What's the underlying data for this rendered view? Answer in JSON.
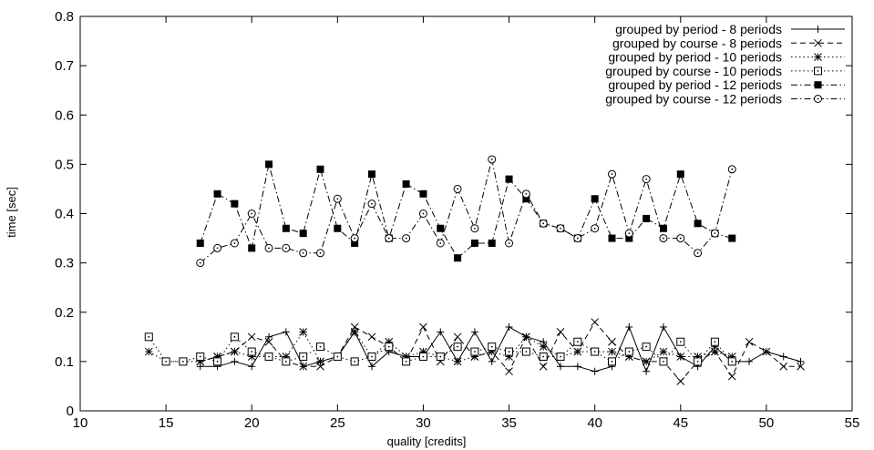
{
  "chart_data": {
    "type": "line",
    "xlabel": "quality [credits]",
    "ylabel": "time [sec]",
    "xlim": [
      10,
      55
    ],
    "ylim": [
      0,
      0.8
    ],
    "xticks": [
      "10",
      "15",
      "20",
      "25",
      "30",
      "35",
      "40",
      "45",
      "50",
      "55"
    ],
    "yticks": [
      "0",
      "0.1",
      "0.2",
      "0.3",
      "0.4",
      "0.5",
      "0.6",
      "0.7",
      "0.8"
    ],
    "grid": false,
    "legend_position": "top-right",
    "series": [
      {
        "name": "grouped by period - 8 periods",
        "marker": "plus",
        "dash": "solid",
        "x": [
          17,
          18,
          19,
          20,
          21,
          22,
          23,
          24,
          25,
          26,
          27,
          28,
          29,
          30,
          31,
          32,
          33,
          34,
          35,
          36,
          37,
          38,
          39,
          40,
          41,
          42,
          43,
          44,
          45,
          46,
          47,
          48,
          49,
          50,
          51,
          52
        ],
        "y": [
          0.09,
          0.09,
          0.1,
          0.09,
          0.15,
          0.16,
          0.09,
          0.1,
          0.11,
          0.16,
          0.09,
          0.12,
          0.11,
          0.11,
          0.16,
          0.1,
          0.16,
          0.1,
          0.17,
          0.15,
          0.14,
          0.09,
          0.09,
          0.08,
          0.09,
          0.17,
          0.08,
          0.17,
          0.11,
          0.09,
          0.13,
          0.1,
          0.1,
          0.12,
          0.11,
          0.1
        ]
      },
      {
        "name": "grouped by course - 8 periods",
        "marker": "x",
        "dash": "dashed",
        "x": [
          17,
          18,
          19,
          20,
          21,
          22,
          23,
          24,
          25,
          26,
          27,
          28,
          29,
          30,
          31,
          32,
          33,
          34,
          35,
          36,
          37,
          38,
          39,
          40,
          41,
          42,
          43,
          44,
          45,
          46,
          47,
          48,
          49,
          50,
          51,
          52
        ],
        "y": [
          0.1,
          0.11,
          0.12,
          0.15,
          0.14,
          0.1,
          0.09,
          0.09,
          0.11,
          0.17,
          0.15,
          0.13,
          0.1,
          0.17,
          0.1,
          0.15,
          0.11,
          0.12,
          0.08,
          0.15,
          0.09,
          0.16,
          0.12,
          0.18,
          0.14,
          0.11,
          0.1,
          0.1,
          0.06,
          0.1,
          0.12,
          0.07,
          0.14,
          0.12,
          0.09,
          0.09
        ]
      },
      {
        "name": "grouped by period - 10 periods",
        "marker": "asterisk",
        "dash": "dotted",
        "x": [
          14,
          15,
          16,
          17,
          18,
          19,
          20,
          21,
          22,
          23,
          24,
          25,
          26,
          27,
          28,
          29,
          30,
          31,
          32,
          33,
          34,
          35,
          36,
          37,
          38,
          39,
          40,
          41,
          42,
          43,
          44,
          45,
          46,
          47,
          48
        ],
        "y": [
          0.12,
          0.1,
          0.1,
          0.1,
          0.11,
          0.12,
          0.11,
          0.11,
          0.11,
          0.16,
          0.1,
          0.11,
          0.16,
          0.11,
          0.14,
          0.11,
          0.12,
          0.11,
          0.1,
          0.11,
          0.12,
          0.11,
          0.15,
          0.13,
          0.11,
          0.12,
          0.12,
          0.12,
          0.11,
          0.1,
          0.12,
          0.11,
          0.11,
          0.12,
          0.11
        ]
      },
      {
        "name": "grouped by course - 10 periods",
        "marker": "square-open",
        "dash": "dotted",
        "x": [
          14,
          15,
          16,
          17,
          18,
          19,
          20,
          21,
          22,
          23,
          24,
          25,
          26,
          27,
          28,
          29,
          30,
          31,
          32,
          33,
          34,
          35,
          36,
          37,
          38,
          39,
          40,
          41,
          42,
          43,
          44,
          45,
          46,
          47,
          48
        ],
        "y": [
          0.15,
          0.1,
          0.1,
          0.11,
          0.1,
          0.15,
          0.12,
          0.11,
          0.1,
          0.11,
          0.13,
          0.11,
          0.1,
          0.11,
          0.13,
          0.1,
          0.11,
          0.11,
          0.13,
          0.12,
          0.13,
          0.12,
          0.12,
          0.11,
          0.11,
          0.14,
          0.12,
          0.1,
          0.12,
          0.13,
          0.1,
          0.14,
          0.1,
          0.14,
          0.1
        ]
      },
      {
        "name": "grouped by period - 12 periods",
        "marker": "square-filled",
        "dash": "dash-dot",
        "x": [
          17,
          18,
          19,
          20,
          21,
          22,
          23,
          24,
          25,
          26,
          27,
          28,
          29,
          30,
          31,
          32,
          33,
          34,
          35,
          36,
          37,
          38,
          39,
          40,
          41,
          42,
          43,
          44,
          45,
          46,
          47,
          48
        ],
        "y": [
          0.34,
          0.44,
          0.42,
          0.33,
          0.5,
          0.37,
          0.36,
          0.49,
          0.37,
          0.34,
          0.48,
          0.35,
          0.46,
          0.44,
          0.37,
          0.31,
          0.34,
          0.34,
          0.47,
          0.43,
          0.38,
          0.37,
          0.35,
          0.43,
          0.35,
          0.35,
          0.39,
          0.37,
          0.48,
          0.38,
          0.36,
          0.35
        ]
      },
      {
        "name": "grouped by course - 12 periods",
        "marker": "circle-dot",
        "dash": "dash-dot",
        "x": [
          17,
          18,
          19,
          20,
          21,
          22,
          23,
          24,
          25,
          26,
          27,
          28,
          29,
          30,
          31,
          32,
          33,
          34,
          35,
          36,
          37,
          38,
          39,
          40,
          41,
          42,
          43,
          44,
          45,
          46,
          47,
          48
        ],
        "y": [
          0.3,
          0.33,
          0.34,
          0.4,
          0.33,
          0.33,
          0.32,
          0.32,
          0.43,
          0.35,
          0.42,
          0.35,
          0.35,
          0.4,
          0.34,
          0.45,
          0.37,
          0.51,
          0.34,
          0.44,
          0.38,
          0.37,
          0.35,
          0.37,
          0.48,
          0.36,
          0.47,
          0.35,
          0.35,
          0.32,
          0.36,
          0.49
        ]
      }
    ]
  }
}
